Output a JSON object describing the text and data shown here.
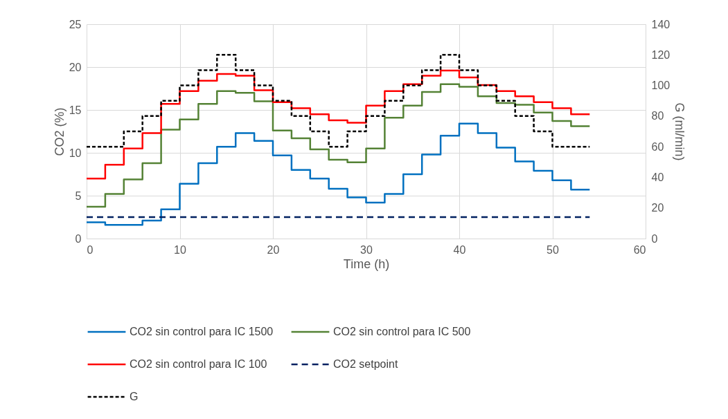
{
  "chart_data": {
    "type": "step",
    "xlabel": "Time (h)",
    "ylabel": "CO2 (%)",
    "y2label": "G (ml/min)",
    "x": [
      0,
      2,
      4,
      6,
      8,
      10,
      12,
      14,
      16,
      18,
      20,
      22,
      24,
      26,
      28,
      30,
      32,
      34,
      36,
      38,
      40,
      42,
      44,
      46,
      48,
      50,
      52,
      54
    ],
    "xlim": [
      0,
      60
    ],
    "xticks": [
      0,
      10,
      20,
      30,
      40,
      50,
      60
    ],
    "ylim": [
      0,
      25
    ],
    "yticks": [
      0,
      5,
      10,
      15,
      20,
      25
    ],
    "y2lim": [
      0,
      140
    ],
    "y2ticks": [
      0,
      20,
      40,
      60,
      80,
      100,
      120,
      140
    ],
    "grid": true,
    "legend": "bottom",
    "series": [
      {
        "name": "CO2 sin control para IC 1500",
        "color": "#0070c0",
        "line_style": "solid",
        "values": [
          1.9,
          1.6,
          1.6,
          2.1,
          3.4,
          6.4,
          8.8,
          10.7,
          12.3,
          11.4,
          9.7,
          8.0,
          7.0,
          5.8,
          4.8,
          4.2,
          5.2,
          7.5,
          9.8,
          12.0,
          13.4,
          12.3,
          10.6,
          9.0,
          7.9,
          6.8,
          5.7,
          5.7
        ]
      },
      {
        "name": "CO2 sin control para IC 500",
        "color": "#548235",
        "line_style": "solid",
        "values": [
          3.7,
          5.2,
          6.9,
          8.8,
          12.7,
          13.9,
          15.7,
          17.2,
          17.0,
          16.0,
          12.6,
          11.7,
          10.4,
          9.2,
          8.9,
          10.5,
          14.1,
          15.5,
          17.1,
          18.0,
          17.7,
          16.6,
          15.8,
          15.6,
          14.7,
          13.7,
          13.1,
          13.1
        ]
      },
      {
        "name": "CO2 sin control para IC 100",
        "color": "#ff0000",
        "line_style": "solid",
        "values": [
          7.0,
          8.6,
          10.5,
          12.3,
          15.7,
          17.2,
          18.4,
          19.2,
          19.0,
          17.3,
          15.9,
          15.2,
          14.5,
          13.8,
          13.5,
          15.5,
          17.2,
          18.0,
          19.0,
          19.6,
          18.8,
          17.9,
          17.2,
          16.6,
          15.9,
          15.2,
          14.5,
          14.5
        ]
      },
      {
        "name": "CO2 setpoint",
        "color": "#002060",
        "line_style": "dashed",
        "type": "line",
        "x": [
          0,
          54
        ],
        "values": [
          2.5,
          2.5
        ]
      },
      {
        "name": "G",
        "color": "#000000",
        "line_style": "dotted",
        "axis": "y2",
        "values": [
          60,
          60,
          70,
          80,
          90,
          100,
          110,
          120,
          110,
          100,
          90,
          80,
          70,
          60,
          70,
          80,
          90,
          100,
          110,
          120,
          110,
          100,
          90,
          80,
          70,
          60,
          60,
          60
        ]
      }
    ]
  }
}
